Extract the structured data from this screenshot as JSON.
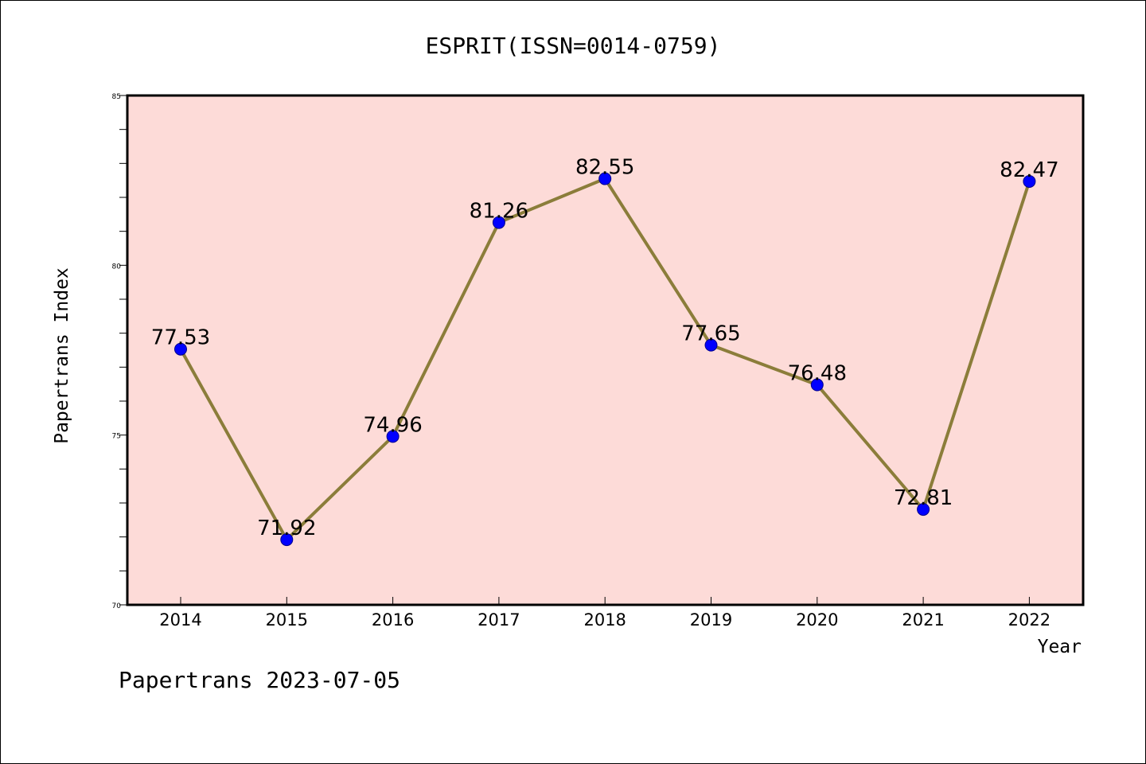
{
  "chart_data": {
    "type": "line",
    "title": "ESPRIT(ISSN=0014-0759)",
    "xlabel": "Year",
    "ylabel": "Papertrans Index",
    "x": [
      "2014",
      "2015",
      "2016",
      "2017",
      "2018",
      "2019",
      "2020",
      "2021",
      "2022"
    ],
    "series": [
      {
        "values": [
          77.53,
          71.92,
          74.96,
          81.26,
          82.55,
          77.65,
          76.48,
          72.81,
          82.47
        ],
        "data_labels": [
          "77.53",
          "71.92",
          "74.96",
          "81.26",
          "82.55",
          "77.65",
          "76.48",
          "72.81",
          "82.47"
        ]
      }
    ],
    "ylim": [
      70,
      85
    ],
    "y_tick_labels": [
      "70",
      "75",
      "80",
      "85"
    ],
    "grid": false,
    "colors": {
      "plot_background": "#fddbd8",
      "line": "#8b7d3a",
      "marker": "#0000ff",
      "marker_edge": "#00008b"
    }
  },
  "footer": {
    "watermark": "Papertrans 2023-07-05"
  }
}
